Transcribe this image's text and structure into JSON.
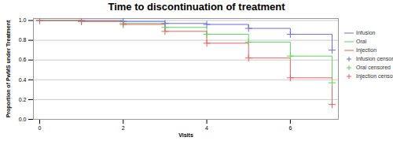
{
  "chart_data": {
    "type": "step",
    "title": "Time to discontinuation of treatment",
    "x_label": "Visits",
    "y_label": "Proportion of PwMS under Treatment",
    "x": [
      0,
      1,
      2,
      3,
      4,
      5,
      6,
      7
    ],
    "xlim": [
      -0.15,
      7.15
    ],
    "xticks": [
      0,
      2,
      4,
      6
    ],
    "ylim": [
      0,
      1.02
    ],
    "yticks": [
      {
        "value": 0,
        "label": "0.0"
      },
      {
        "value": 0.2,
        "label": "0.2"
      },
      {
        "value": 0.4,
        "label": "0.4"
      },
      {
        "value": 0.6,
        "label": "0.6"
      },
      {
        "value": 0.8,
        "label": "0.8"
      },
      {
        "value": 1,
        "label": "1.0"
      }
    ],
    "grid": true,
    "legend": "right",
    "series": [
      {
        "name": "Infusion",
        "type": "step",
        "color": "#6b6bf0",
        "values": [
          1.0,
          1.0,
          0.99,
          0.97,
          0.96,
          0.92,
          0.86,
          0.7
        ]
      },
      {
        "name": "Oral",
        "type": "step",
        "color": "#5cd65c",
        "values": [
          1.0,
          0.99,
          0.97,
          0.93,
          0.86,
          0.78,
          0.64,
          0.37
        ]
      },
      {
        "name": "Injection",
        "type": "step",
        "color": "#f06060",
        "values": [
          1.0,
          0.99,
          0.96,
          0.89,
          0.77,
          0.62,
          0.42,
          0.15
        ]
      },
      {
        "name": "Infusion censored",
        "type": "scatter",
        "marker": "plus",
        "color": "#6b6bf0",
        "values": [
          1.0,
          1.0,
          0.99,
          0.97,
          0.96,
          0.92,
          0.86,
          0.7
        ]
      },
      {
        "name": "Oral censored",
        "type": "scatter",
        "marker": "plus",
        "color": "#5cd65c",
        "values": [
          1.0,
          0.99,
          0.97,
          0.93,
          0.86,
          0.78,
          0.64,
          0.37
        ]
      },
      {
        "name": "Injection censored",
        "type": "scatter",
        "marker": "plus",
        "color": "#f06060",
        "values": [
          1.0,
          0.99,
          0.96,
          0.89,
          0.77,
          0.62,
          0.42,
          0.15
        ]
      }
    ]
  }
}
